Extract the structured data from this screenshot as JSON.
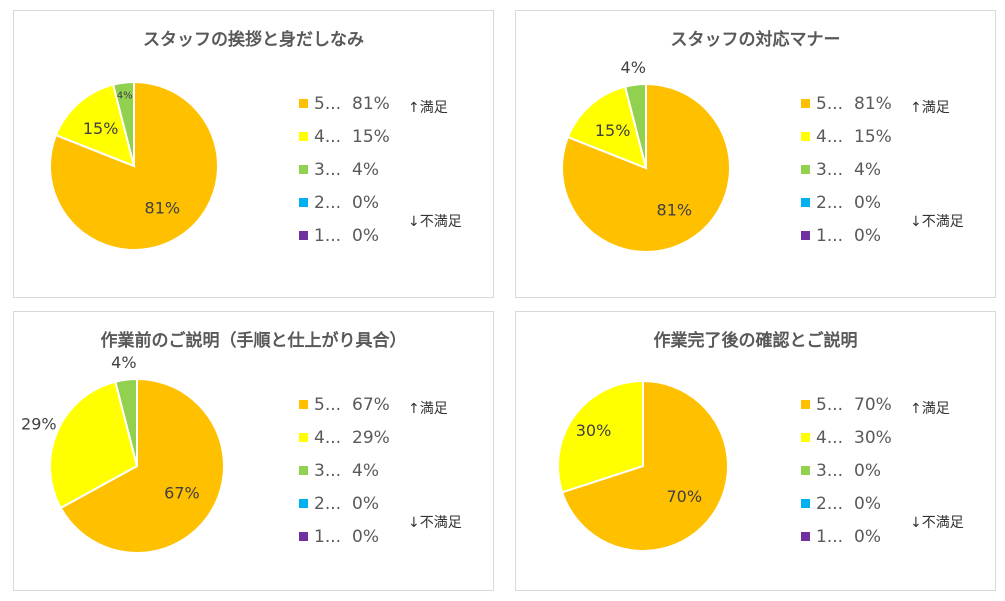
{
  "legend_categories": [
    "5...",
    "4...",
    "3...",
    "2...",
    "1..."
  ],
  "colors": [
    "#FFC000",
    "#FFFF00",
    "#92D050",
    "#00B0F0",
    "#7030A0"
  ],
  "notes": {
    "top": "↑満足",
    "bottom": "↓不満足"
  },
  "chart_data": [
    {
      "type": "pie",
      "title": "スタッフの挨拶と身だしなみ",
      "categories": [
        "5",
        "4",
        "3",
        "2",
        "1"
      ],
      "values": [
        81,
        15,
        4,
        0,
        0
      ],
      "labels": [
        "81%",
        "15%",
        "4%",
        "0%",
        "0%"
      ]
    },
    {
      "type": "pie",
      "title": "スタッフの対応マナー",
      "categories": [
        "5",
        "4",
        "3",
        "2",
        "1"
      ],
      "values": [
        81,
        15,
        4,
        0,
        0
      ],
      "labels": [
        "81%",
        "15%",
        "4%",
        "0%",
        "0%"
      ]
    },
    {
      "type": "pie",
      "title": "作業前のご説明（手順と仕上がり具合）",
      "categories": [
        "5",
        "4",
        "3",
        "2",
        "1"
      ],
      "values": [
        67,
        29,
        4,
        0,
        0
      ],
      "labels": [
        "67%",
        "29%",
        "4%",
        "0%",
        "0%"
      ]
    },
    {
      "type": "pie",
      "title": "作業完了後の確認とご説明",
      "categories": [
        "5",
        "4",
        "3",
        "2",
        "1"
      ],
      "values": [
        70,
        30,
        0,
        0,
        0
      ],
      "labels": [
        "70%",
        "30%",
        "0%",
        "0%",
        "0%"
      ]
    }
  ]
}
